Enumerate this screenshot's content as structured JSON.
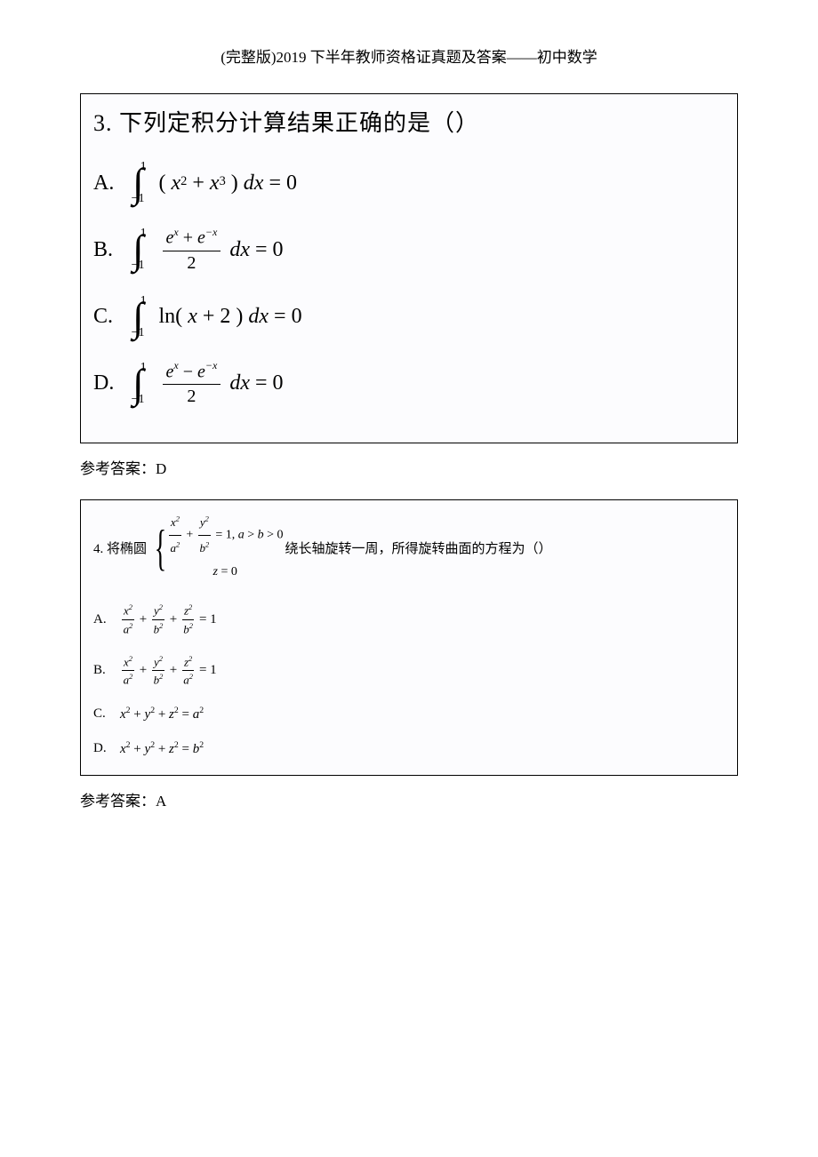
{
  "header": "(完整版)2019 下半年教师资格证真题及答案——初中数学",
  "q3": {
    "title": "3. 下列定积分计算结果正确的是（）",
    "options": {
      "A": {
        "letter": "A.",
        "upper": "1",
        "lower": "−1",
        "inner": "( x² + x³ )",
        "tail": "dx = 0"
      },
      "B": {
        "letter": "B.",
        "upper": "1",
        "lower": "−1",
        "num": "eˣ + e⁻ˣ",
        "den": "2",
        "tail": "dx = 0"
      },
      "C": {
        "letter": "C.",
        "upper": "1",
        "lower": "−1",
        "inner": "ln( x + 2 )",
        "tail": "dx = 0"
      },
      "D": {
        "letter": "D.",
        "upper": "1",
        "lower": "−1",
        "num": "eˣ − e⁻ˣ",
        "den": "2",
        "tail": "dx = 0"
      }
    }
  },
  "answer3": "参考答案：D",
  "q4": {
    "prefix": "4.  将椭圆",
    "brace_line1_pre": "",
    "brace_eq1": "x²/a² + y²/b² = 1, a > b > 0",
    "brace_eq2": "z = 0",
    "suffix": "绕长轴旋转一周，所得旋转曲面的方程为（）",
    "options": {
      "A": {
        "letter": "A.",
        "terms": [
          "x²",
          "a²",
          "y²",
          "b²",
          "z²",
          "b²"
        ],
        "tail": "= 1"
      },
      "B": {
        "letter": "B.",
        "terms": [
          "x²",
          "a²",
          "y²",
          "b²",
          "z²",
          "a²"
        ],
        "tail": "= 1"
      },
      "C": {
        "letter": "C.",
        "eq": "x² + y² + z² = a²"
      },
      "D": {
        "letter": "D.",
        "eq": "x² + y² + z² = b²"
      }
    }
  },
  "answer4": "参考答案：A",
  "colors": {
    "text": "#000000",
    "bg": "#ffffff",
    "box_bg": "#fcfcfe",
    "border": "#000000"
  }
}
